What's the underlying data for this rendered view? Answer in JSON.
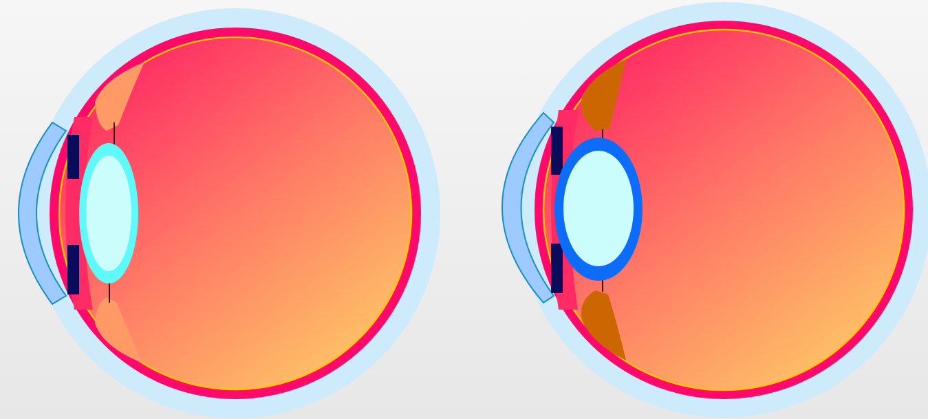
{
  "diagram": {
    "eyes": [
      {
        "id": "eye-relaxed",
        "state": "relaxed (thin lens)"
      },
      {
        "id": "eye-accommodated",
        "state": "accommodated (thick lens)"
      }
    ]
  },
  "colors": {
    "sclera": "#cdebfb",
    "choroid": "#ff0a6a",
    "retina_line": "#ffc400",
    "vitreous_top": "#ff2b64",
    "vitreous_bottom": "#fec166",
    "cornea": "#9dcaff",
    "cornea_outline": "#1a8fc4",
    "iris": "#0b0b5c",
    "lens_core": "#ccfdfd",
    "lens_capsule_relaxed": "#5ff9fa",
    "lens_capsule_accommodated": "#0d6dfa",
    "ciliary_relaxed": "#ff9966",
    "ciliary_contracted": "#cc6600",
    "zonule": "#000000"
  }
}
